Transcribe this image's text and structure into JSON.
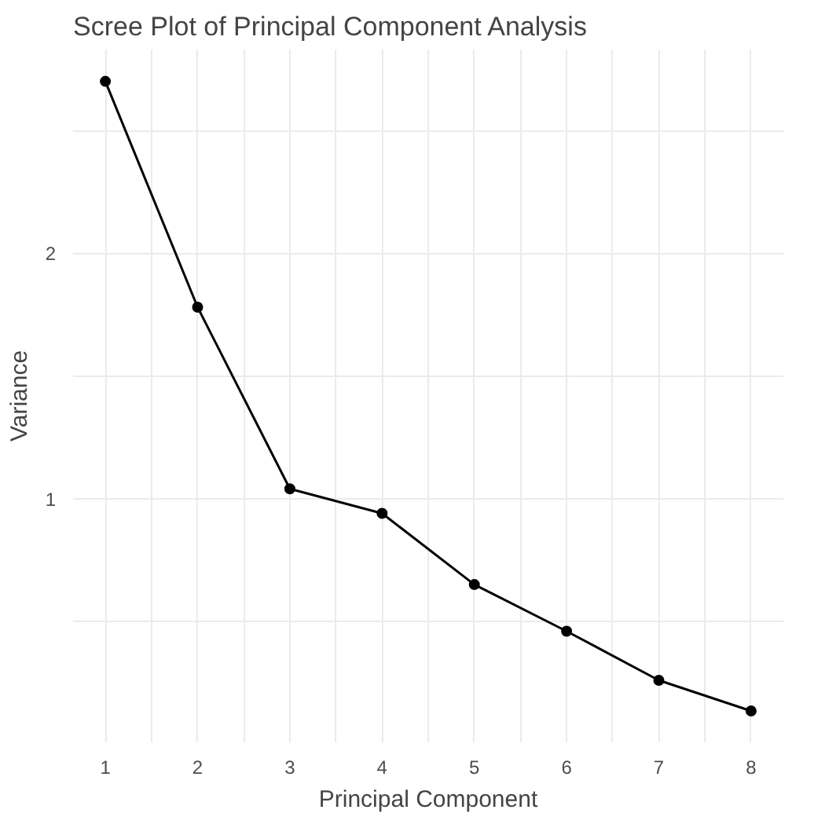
{
  "chart_data": {
    "type": "line",
    "title": "Scree Plot of Principal Component Analysis",
    "xlabel": "Principal Component",
    "ylabel": "Variance",
    "x": [
      1,
      2,
      3,
      4,
      5,
      6,
      7,
      8
    ],
    "series": [
      {
        "color": "#000000",
        "values": [
          2.7,
          1.78,
          1.04,
          0.94,
          0.65,
          0.46,
          0.26,
          0.135
        ]
      }
    ],
    "xlim": [
      0.65,
      8.35
    ],
    "ylim": [
      0.007,
      2.83
    ],
    "xticks": [
      {
        "value": 1,
        "label": "1"
      },
      {
        "value": 1.5,
        "label": null
      },
      {
        "value": 2,
        "label": "2"
      },
      {
        "value": 2.5,
        "label": null
      },
      {
        "value": 3,
        "label": "3"
      },
      {
        "value": 3.5,
        "label": null
      },
      {
        "value": 4,
        "label": "4"
      },
      {
        "value": 4.5,
        "label": null
      },
      {
        "value": 5,
        "label": "5"
      },
      {
        "value": 5.5,
        "label": null
      },
      {
        "value": 6,
        "label": "6"
      },
      {
        "value": 6.5,
        "label": null
      },
      {
        "value": 7,
        "label": "7"
      },
      {
        "value": 7.5,
        "label": null
      },
      {
        "value": 8,
        "label": "8"
      }
    ],
    "yticks": [
      {
        "value": 0.5,
        "label": null
      },
      1,
      {
        "value": 1.5,
        "label": null
      },
      2,
      {
        "value": 2.5,
        "label": null
      }
    ],
    "grid": true,
    "marker": "circle",
    "line_style": "solid"
  }
}
